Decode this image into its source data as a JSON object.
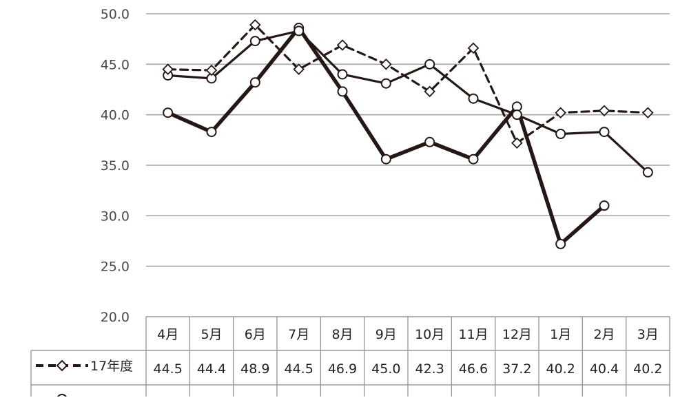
{
  "chart_data": {
    "type": "line",
    "categories": [
      "4月",
      "5月",
      "6月",
      "7月",
      "8月",
      "9月",
      "10月",
      "11月",
      "12月",
      "1月",
      "2月",
      "3月"
    ],
    "yticks": [
      "50.0",
      "45.0",
      "40.0",
      "35.0",
      "30.0",
      "25.0",
      "20.0"
    ],
    "ylim": [
      20,
      50
    ],
    "grid": true,
    "legend": "data-table-below",
    "series": [
      {
        "name": "17年度",
        "style": "dashed-diamond",
        "values": [
          44.5,
          44.4,
          48.9,
          44.5,
          46.9,
          45.0,
          42.3,
          46.6,
          37.2,
          40.2,
          40.4,
          40.2
        ],
        "labels": [
          "44.5",
          "44.4",
          "48.9",
          "44.5",
          "46.9",
          "45.0",
          "42.3",
          "46.6",
          "37.2",
          "40.2",
          "40.4",
          "40.2"
        ],
        "color": "#231815"
      },
      {
        "style": "solid-circle",
        "values": [
          43.9,
          43.6,
          47.3,
          48.3,
          44.0,
          43.1,
          45.0,
          41.6,
          40.0,
          38.1,
          38.3,
          34.3
        ],
        "color": "#231815"
      },
      {
        "style": "thick-circle",
        "values": [
          40.2,
          38.3,
          43.2,
          48.6,
          42.3,
          35.6,
          37.3,
          35.6,
          40.8,
          27.2,
          31.0,
          null
        ],
        "color": "#231815"
      }
    ]
  }
}
